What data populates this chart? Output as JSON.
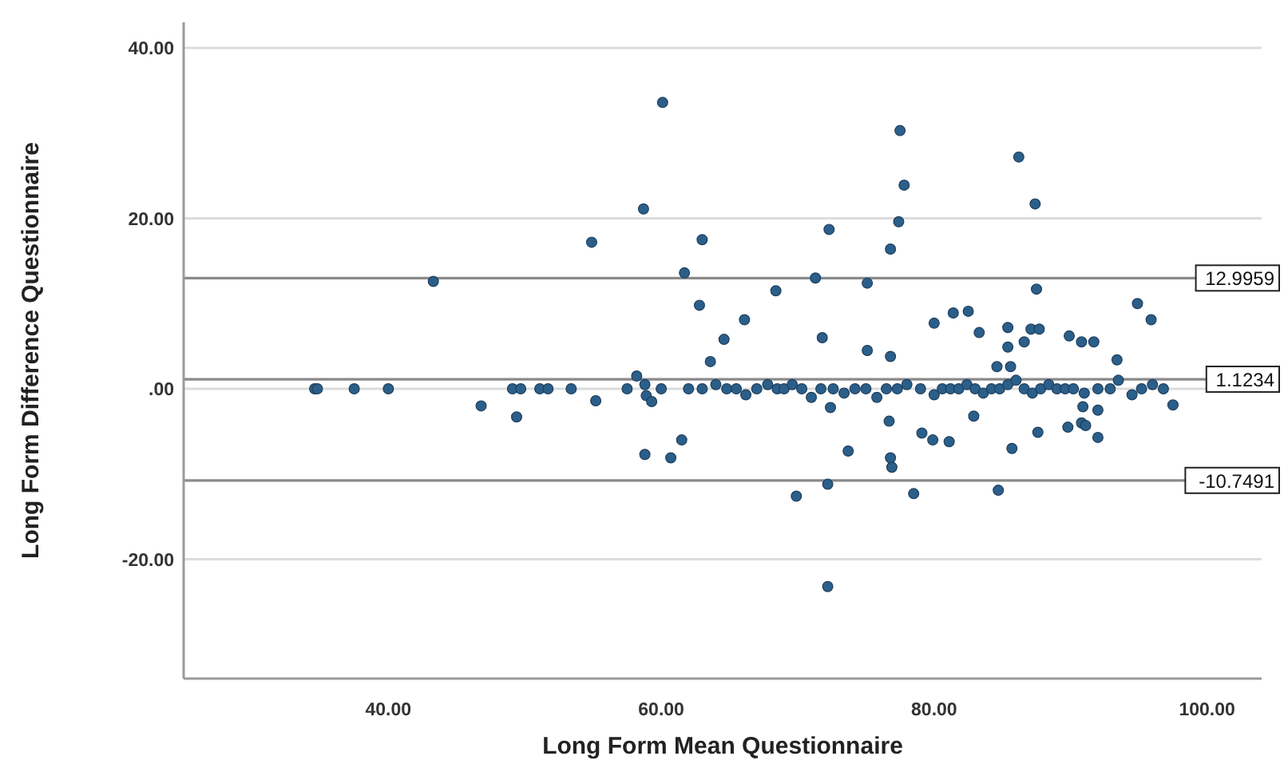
{
  "chart_data": {
    "type": "scatter",
    "xlabel": "Long Form Mean Questionnaire",
    "ylabel": "Long Form Difference Questionnaire",
    "xlim": [
      25,
      104
    ],
    "ylim": [
      -34,
      43
    ],
    "xticks": [
      {
        "value": 40,
        "label": "40.00"
      },
      {
        "value": 60,
        "label": "60.00"
      },
      {
        "value": 80,
        "label": "80.00"
      },
      {
        "value": 100,
        "label": "100.00"
      }
    ],
    "yticks": [
      {
        "value": -20,
        "label": "-20.00"
      },
      {
        "value": 0,
        "label": ".00"
      },
      {
        "value": 20,
        "label": "20.00"
      },
      {
        "value": 40,
        "label": "40.00"
      }
    ],
    "grid": "y",
    "marker": "circle",
    "ref_lines": [
      {
        "axis": "y",
        "value": 12.9959,
        "label": "12.9959",
        "color": "#8a8a8a"
      },
      {
        "axis": "y",
        "value": 1.1234,
        "label": "1.1234",
        "color": "#8a8a8a"
      },
      {
        "axis": "y",
        "value": -10.7491,
        "label": "-10.7491",
        "color": "#8a8a8a"
      }
    ],
    "series": [
      {
        "color": "#2b5f8a",
        "x": [
          34.6,
          34.8,
          37.5,
          40,
          46.8,
          49.1,
          49.7,
          49.4,
          51.1,
          51.7,
          53.4,
          55.2,
          57.5,
          58.2,
          58.8,
          58.9,
          59.3,
          60,
          43.3,
          54.9,
          58.7,
          60.1,
          58.8,
          60.7,
          61.5,
          63,
          61.7,
          62.8,
          68.4,
          66.1,
          64.6,
          63.6,
          71.3,
          72.3,
          71.8,
          75.1,
          75.1,
          76.8,
          76.8,
          77.4,
          77.8,
          77.5,
          86.2,
          87.4,
          87.5,
          80,
          81.4,
          82.5,
          83.3,
          85.4,
          85.4,
          86.6,
          87.1,
          87.7,
          84.6,
          85.6,
          89.9,
          90.8,
          91.7,
          93.4,
          94.9,
          95.9,
          69.9,
          72.2,
          72.2,
          73.7,
          72.4,
          76.7,
          76.8,
          76.9,
          78.5,
          79.1,
          79.9,
          81.1,
          82.9,
          84.7,
          85.7,
          87.6,
          89.8,
          90.8,
          91.1,
          92,
          90.9,
          92,
          92.9,
          97.5,
          62,
          63,
          64,
          64.8,
          65.5,
          66.2,
          67,
          67.8,
          68.5,
          69,
          69.6,
          70.3,
          71,
          71.7,
          72.6,
          73.4,
          74.2,
          75,
          75.8,
          76.5,
          77.3,
          78,
          79,
          80,
          80.6,
          81.2,
          81.8,
          82.4,
          83,
          83.6,
          84.2,
          84.8,
          85.4,
          86,
          86.6,
          87.2,
          87.8,
          88.4,
          89,
          89.6,
          90.2,
          91,
          92,
          93.5,
          94.5,
          95.2,
          96,
          96.8
        ],
        "values": [
          0,
          0,
          0,
          0,
          -2,
          0,
          0,
          -3.3,
          0,
          0,
          0,
          -1.4,
          0,
          1.5,
          0.5,
          -0.8,
          -1.5,
          0,
          12.6,
          17.2,
          21.1,
          33.6,
          -7.7,
          -8.1,
          -6,
          17.5,
          13.6,
          9.8,
          11.5,
          8.1,
          5.8,
          3.2,
          13,
          18.7,
          6,
          12.4,
          4.5,
          3.8,
          16.4,
          19.6,
          23.9,
          30.3,
          27.2,
          21.7,
          11.7,
          7.7,
          8.9,
          9.1,
          6.6,
          7.2,
          4.9,
          5.5,
          7,
          7,
          2.6,
          2.6,
          6.2,
          5.5,
          5.5,
          3.4,
          10,
          8.1,
          -12.6,
          -11.2,
          -23.2,
          -7.3,
          -2.2,
          -3.8,
          -8.1,
          -9.2,
          -12.3,
          -5.2,
          -6,
          -6.2,
          -3.2,
          -11.9,
          -7,
          -5.1,
          -4.5,
          -4,
          -4.3,
          -5.7,
          -2.1,
          -2.5,
          0,
          -1.9,
          0,
          0,
          0.5,
          0,
          0,
          -0.7,
          0,
          0.5,
          0,
          0,
          0.5,
          0,
          -1,
          0,
          0,
          -0.5,
          0,
          0,
          -1,
          0,
          0,
          0.5,
          0,
          -0.7,
          0,
          0,
          0,
          0.5,
          0,
          -0.5,
          0,
          0,
          0.5,
          1,
          0,
          -0.5,
          0,
          0.5,
          0,
          0,
          0,
          -0.5,
          0,
          1,
          -0.7,
          0,
          0.5,
          0
        ]
      }
    ]
  }
}
